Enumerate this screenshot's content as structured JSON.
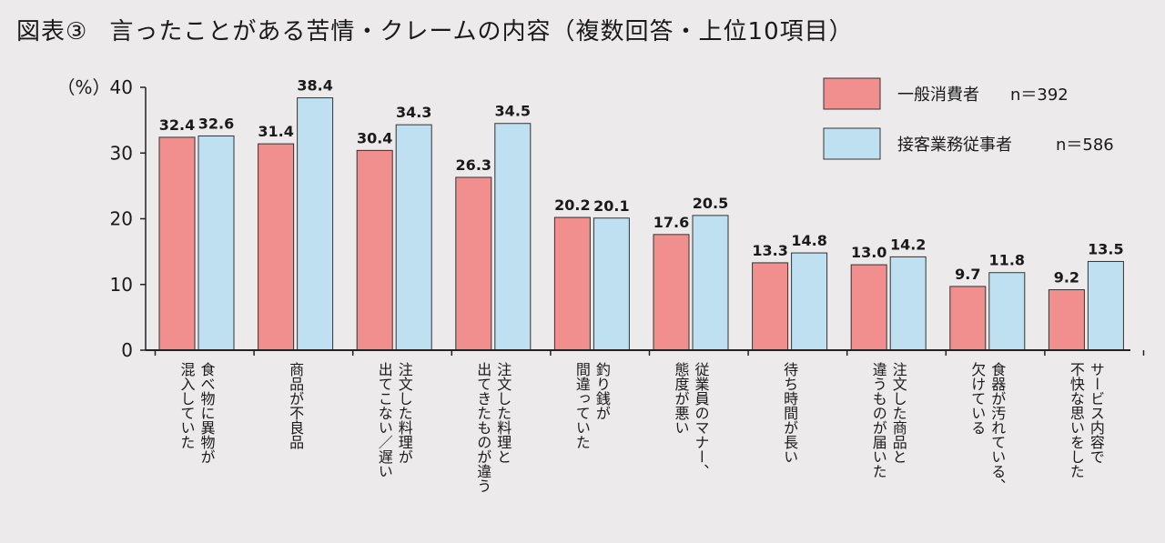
{
  "header": {
    "figure_label": "図表③",
    "title": "言ったことがある苦情・クレームの内容（複数回答・上位10項目）"
  },
  "chart_data": {
    "type": "bar",
    "unit_label": "（%）",
    "ylim": [
      0,
      40
    ],
    "yticks": [
      "0",
      "10",
      "20",
      "30",
      "40"
    ],
    "grid": false,
    "legend_position": "top-right",
    "colors": {
      "general": "#f08f8d",
      "staff": "#bfe0f1"
    },
    "categories": [
      [
        "食べ物に異物が",
        "混入していた"
      ],
      [
        "商品が不良品"
      ],
      [
        "注文した料理が",
        "出てこない／遅い"
      ],
      [
        "注文した料理と",
        "出てきたものが違う"
      ],
      [
        "釣り銭が",
        "間違っていた"
      ],
      [
        "従業員のマナー、",
        "態度が悪い"
      ],
      [
        "待ち時間が長い"
      ],
      [
        "注文した商品と",
        "違うものが届いた"
      ],
      [
        "食器が汚れている、",
        "欠けている"
      ],
      [
        "サービス内容で",
        "不快な思いをした"
      ]
    ],
    "series": [
      {
        "name": "一般消費者",
        "n_label": "n＝392",
        "values": [
          32.4,
          31.4,
          30.4,
          26.3,
          20.2,
          17.6,
          13.3,
          13.0,
          9.7,
          9.2
        ],
        "labels": [
          "32.4",
          "31.4",
          "30.4",
          "26.3",
          "20.2",
          "17.6",
          "13.3",
          "13.0",
          "9.7",
          "9.2"
        ]
      },
      {
        "name": "接客業務従事者",
        "n_label": "n＝586",
        "values": [
          32.6,
          38.4,
          34.3,
          34.5,
          20.1,
          20.5,
          14.8,
          14.2,
          11.8,
          13.5
        ],
        "labels": [
          "32.6",
          "38.4",
          "34.3",
          "34.5",
          "20.1",
          "20.5",
          "14.8",
          "14.2",
          "11.8",
          "13.5"
        ]
      }
    ]
  }
}
